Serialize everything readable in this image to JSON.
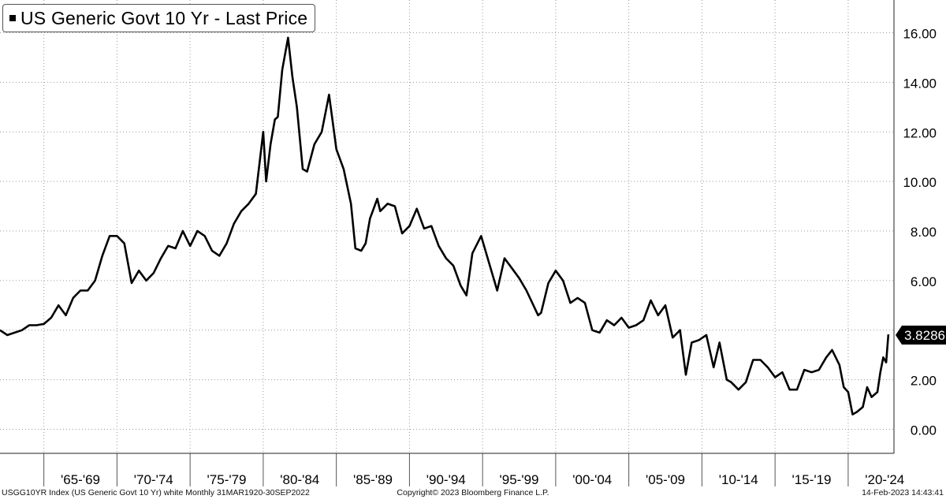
{
  "chart_data": {
    "type": "line",
    "title": "US Generic Govt 10 Yr - Last Price",
    "legend": {
      "label": "US Generic Govt 10 Yr - Last Price",
      "placement": "top-left",
      "color": "#000000"
    },
    "x_categories": [
      "'65-'69",
      "'70-'74",
      "'75-'79",
      "'80-'84",
      "'85-'89",
      "'90-'94",
      "'95-'99",
      "'00-'04",
      "'05-'09",
      "'10-'14",
      "'15-'19",
      "'20-'24"
    ],
    "ylim": [
      -1.0,
      17.0
    ],
    "y_ticks": [
      "0.00",
      "2.00",
      "4.00",
      "6.00",
      "8.00",
      "10.00",
      "12.00",
      "14.00",
      "16.00"
    ],
    "grid": true,
    "last_value_label": "3.8286",
    "series": [
      {
        "values_note": "",
        "x": [
          1962.0,
          1962.5,
          1963.0,
          1963.5,
          1964.0,
          1964.5,
          1965.0,
          1965.5,
          1966.0,
          1966.5,
          1967.0,
          1967.5,
          1968.0,
          1968.5,
          1969.0,
          1969.5,
          1970.0,
          1970.5,
          1971.0,
          1971.5,
          1972.0,
          1972.5,
          1973.0,
          1973.5,
          1974.0,
          1974.5,
          1975.0,
          1975.5,
          1976.0,
          1976.5,
          1977.0,
          1977.5,
          1978.0,
          1978.5,
          1979.0,
          1979.5,
          1980.0,
          1980.2,
          1980.5,
          1980.8,
          1981.0,
          1981.3,
          1981.7,
          1982.0,
          1982.3,
          1982.7,
          1983.0,
          1983.5,
          1984.0,
          1984.5,
          1985.0,
          1985.5,
          1986.0,
          1986.3,
          1986.7,
          1987.0,
          1987.3,
          1987.8,
          1988.0,
          1988.5,
          1989.0,
          1989.5,
          1990.0,
          1990.5,
          1991.0,
          1991.5,
          1992.0,
          1992.5,
          1993.0,
          1993.5,
          1993.9,
          1994.3,
          1994.9,
          1995.5,
          1996.0,
          1996.5,
          1997.0,
          1997.5,
          1998.0,
          1998.8,
          1999.0,
          1999.5,
          2000.0,
          2000.5,
          2001.0,
          2001.5,
          2002.0,
          2002.5,
          2003.0,
          2003.5,
          2004.0,
          2004.5,
          2005.0,
          2005.5,
          2006.0,
          2006.5,
          2007.0,
          2007.5,
          2008.0,
          2008.5,
          2008.9,
          2009.3,
          2009.8,
          2010.3,
          2010.8,
          2011.2,
          2011.7,
          2012.0,
          2012.5,
          2013.0,
          2013.5,
          2014.0,
          2014.5,
          2015.0,
          2015.5,
          2016.0,
          2016.5,
          2017.0,
          2017.5,
          2018.0,
          2018.5,
          2018.9,
          2019.4,
          2019.7,
          2020.0,
          2020.3,
          2020.6,
          2021.0,
          2021.3,
          2021.6,
          2022.0,
          2022.2,
          2022.4,
          2022.6,
          2022.75
        ],
        "values": [
          4.0,
          3.8,
          3.9,
          4.0,
          4.2,
          4.2,
          4.25,
          4.5,
          5.0,
          4.6,
          5.3,
          5.6,
          5.6,
          6.0,
          7.0,
          7.8,
          7.8,
          7.5,
          5.9,
          6.4,
          6.0,
          6.3,
          6.9,
          7.4,
          7.3,
          8.0,
          7.4,
          8.0,
          7.8,
          7.2,
          7.0,
          7.5,
          8.3,
          8.8,
          9.1,
          9.5,
          12.0,
          10.0,
          11.5,
          12.5,
          12.6,
          14.5,
          15.8,
          14.2,
          13.0,
          10.5,
          10.4,
          11.5,
          12.0,
          13.5,
          11.3,
          10.5,
          9.1,
          7.3,
          7.2,
          7.5,
          8.5,
          9.3,
          8.8,
          9.1,
          9.0,
          7.9,
          8.2,
          8.9,
          8.1,
          8.2,
          7.4,
          6.9,
          6.6,
          5.8,
          5.4,
          7.1,
          7.8,
          6.6,
          5.6,
          6.9,
          6.5,
          6.1,
          5.6,
          4.6,
          4.7,
          5.9,
          6.4,
          6.0,
          5.1,
          5.3,
          5.1,
          4.0,
          3.9,
          4.4,
          4.2,
          4.5,
          4.1,
          4.2,
          4.4,
          5.2,
          4.6,
          5.0,
          3.7,
          4.0,
          2.2,
          3.5,
          3.6,
          3.8,
          2.5,
          3.5,
          2.0,
          1.9,
          1.6,
          1.9,
          2.8,
          2.8,
          2.5,
          2.1,
          2.3,
          1.6,
          1.6,
          2.4,
          2.3,
          2.4,
          2.9,
          3.2,
          2.6,
          1.7,
          1.5,
          0.6,
          0.7,
          0.9,
          1.7,
          1.3,
          1.5,
          2.3,
          2.9,
          2.7,
          3.83
        ]
      }
    ]
  },
  "footer": {
    "left": "USGG10YR Index (US Generic Govt 10 Yr) white  Monthly 31MAR1920-30SEP2022",
    "center": "Copyright© 2023 Bloomberg Finance L.P.",
    "right": "14-Feb-2023 14:43:41"
  }
}
